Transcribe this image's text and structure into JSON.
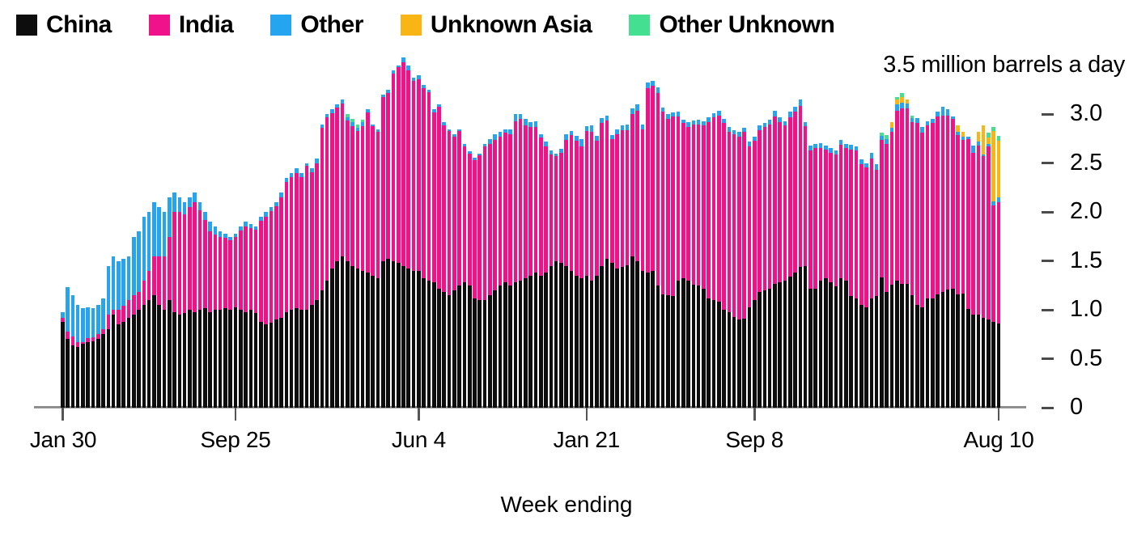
{
  "unit_label": "3.5 million barrels a day",
  "x_axis_title": "Week ending",
  "legend": {
    "items": [
      {
        "label": "China",
        "color": "#0d0d0d"
      },
      {
        "label": "India",
        "color": "#f0128b"
      },
      {
        "label": "Other",
        "color": "#25a5f0"
      },
      {
        "label": "Unknown Asia",
        "color": "#f9b513"
      },
      {
        "label": "Other Unknown",
        "color": "#45df92"
      }
    ]
  },
  "y_axis": {
    "ticks": [
      {
        "label": "3.0",
        "value": 3.0
      },
      {
        "label": "2.5",
        "value": 2.5
      },
      {
        "label": "2.0",
        "value": 2.0
      },
      {
        "label": "1.5",
        "value": 1.5
      },
      {
        "label": "1.0",
        "value": 1.0
      },
      {
        "label": "0.5",
        "value": 0.5
      },
      {
        "label": "0",
        "value": 0
      }
    ]
  },
  "x_axis": {
    "ticks": [
      {
        "label": "Jan 30",
        "week": 0
      },
      {
        "label": "Sep 25",
        "week": 34
      },
      {
        "label": "Jun 4",
        "week": 70
      },
      {
        "label": "Jan 21",
        "week": 103
      },
      {
        "label": "Sep 8",
        "week": 136
      },
      {
        "label": "Aug 10",
        "week": 184
      }
    ]
  },
  "chart_data": {
    "type": "bar",
    "stacked": true,
    "n_weeks": 185,
    "unit": "million barrels a day",
    "ylim": [
      0,
      3.5
    ],
    "xlabel": "Week ending",
    "x_tick_labels": [
      "Jan 30",
      "Sep 25",
      "Jun 4",
      "Jan 21",
      "Sep 8",
      "Aug 10"
    ],
    "series": [
      {
        "name": "China",
        "color": "#0d0d0d",
        "values": [
          0.88,
          0.7,
          0.64,
          0.62,
          0.65,
          0.67,
          0.68,
          0.7,
          0.75,
          0.8,
          0.95,
          0.85,
          0.88,
          0.92,
          0.95,
          1.0,
          1.05,
          1.1,
          1.15,
          1.05,
          1.0,
          1.1,
          0.98,
          0.95,
          0.97,
          1.0,
          0.98,
          1.0,
          1.02,
          0.98,
          1.0,
          1.0,
          1.02,
          1.0,
          1.03,
          1.0,
          0.98,
          1.0,
          0.97,
          0.88,
          0.85,
          0.87,
          0.9,
          0.92,
          0.98,
          1.0,
          1.02,
          1.0,
          1.0,
          1.05,
          1.1,
          1.2,
          1.3,
          1.42,
          1.5,
          1.55,
          1.5,
          1.45,
          1.42,
          1.4,
          1.38,
          1.35,
          1.32,
          1.5,
          1.52,
          1.5,
          1.48,
          1.45,
          1.42,
          1.4,
          1.4,
          1.32,
          1.3,
          1.28,
          1.22,
          1.18,
          1.15,
          1.2,
          1.25,
          1.28,
          1.25,
          1.12,
          1.1,
          1.1,
          1.15,
          1.2,
          1.25,
          1.28,
          1.25,
          1.28,
          1.3,
          1.32,
          1.35,
          1.38,
          1.35,
          1.38,
          1.45,
          1.5,
          1.48,
          1.45,
          1.4,
          1.35,
          1.32,
          1.35,
          1.3,
          1.35,
          1.45,
          1.52,
          1.48,
          1.42,
          1.44,
          1.46,
          1.55,
          1.5,
          1.4,
          1.38,
          1.4,
          1.25,
          1.16,
          1.15,
          1.14,
          1.3,
          1.32,
          1.3,
          1.26,
          1.25,
          1.22,
          1.12,
          1.1,
          1.08,
          1.0,
          0.98,
          0.93,
          0.9,
          0.91,
          1.03,
          1.1,
          1.18,
          1.2,
          1.22,
          1.27,
          1.28,
          1.3,
          1.34,
          1.38,
          1.44,
          1.45,
          1.22,
          1.22,
          1.3,
          1.32,
          1.28,
          1.24,
          1.32,
          1.3,
          1.14,
          1.12,
          1.05,
          1.03,
          1.12,
          1.14,
          1.33,
          1.18,
          1.26,
          1.3,
          1.27,
          1.27,
          1.15,
          1.05,
          1.03,
          1.12,
          1.12,
          1.16,
          1.18,
          1.21,
          1.22,
          1.16,
          1.17,
          1.01,
          0.95,
          0.95,
          0.92,
          0.9,
          0.88,
          0.86
        ]
      },
      {
        "name": "India",
        "color": "#f0128b",
        "values": [
          0.04,
          0.08,
          0.09,
          0.05,
          0.02,
          0.04,
          0.04,
          0.05,
          0.05,
          0.15,
          0.05,
          0.15,
          0.16,
          0.18,
          0.2,
          0.18,
          0.25,
          0.3,
          0.4,
          0.5,
          0.55,
          0.65,
          1.02,
          1.05,
          1.01,
          1.05,
          1.12,
          1.02,
          0.9,
          0.82,
          0.77,
          0.75,
          0.72,
          0.71,
          0.72,
          0.81,
          0.87,
          0.84,
          0.85,
          1.03,
          1.1,
          1.14,
          1.16,
          1.23,
          1.33,
          1.36,
          1.38,
          1.36,
          1.47,
          1.36,
          1.4,
          1.66,
          1.67,
          1.59,
          1.57,
          1.56,
          1.44,
          1.43,
          1.41,
          1.48,
          1.64,
          1.53,
          1.5,
          1.68,
          1.7,
          1.92,
          2.0,
          2.08,
          2.03,
          1.94,
          1.96,
          1.95,
          1.93,
          1.74,
          1.86,
          1.71,
          1.68,
          1.57,
          1.58,
          1.39,
          1.35,
          1.41,
          1.48,
          1.57,
          1.55,
          1.54,
          1.52,
          1.53,
          1.55,
          1.65,
          1.65,
          1.57,
          1.52,
          1.49,
          1.41,
          1.29,
          1.14,
          1.07,
          1.13,
          1.29,
          1.39,
          1.38,
          1.35,
          1.48,
          1.52,
          1.38,
          1.46,
          1.42,
          1.27,
          1.38,
          1.4,
          1.38,
          1.45,
          1.54,
          1.45,
          1.89,
          1.89,
          1.97,
          1.87,
          1.8,
          1.84,
          1.68,
          1.59,
          1.57,
          1.64,
          1.65,
          1.67,
          1.8,
          1.87,
          1.91,
          1.91,
          1.84,
          1.87,
          1.87,
          1.91,
          1.64,
          1.63,
          1.66,
          1.67,
          1.68,
          1.71,
          1.64,
          1.59,
          1.63,
          1.65,
          1.65,
          1.43,
          1.41,
          1.44,
          1.36,
          1.32,
          1.33,
          1.35,
          1.37,
          1.36,
          1.5,
          1.51,
          1.44,
          1.43,
          1.43,
          1.29,
          1.41,
          1.52,
          1.56,
          1.74,
          1.79,
          1.79,
          1.77,
          1.86,
          1.78,
          1.77,
          1.79,
          1.82,
          1.81,
          1.78,
          1.73,
          1.63,
          1.57,
          1.74,
          1.66,
          1.73,
          1.65,
          1.77,
          1.19,
          1.24
        ]
      },
      {
        "name": "Other",
        "color": "#25a5f0",
        "values": [
          0.06,
          0.45,
          0.42,
          0.38,
          0.35,
          0.32,
          0.3,
          0.3,
          0.32,
          0.5,
          0.55,
          0.5,
          0.48,
          0.45,
          0.6,
          0.62,
          0.65,
          0.6,
          0.55,
          0.5,
          0.45,
          0.4,
          0.2,
          0.15,
          0.12,
          0.1,
          0.1,
          0.08,
          0.08,
          0.1,
          0.08,
          0.05,
          0.04,
          0.04,
          0.03,
          0.04,
          0.05,
          0.04,
          0.03,
          0.04,
          0.05,
          0.04,
          0.04,
          0.05,
          0.04,
          0.04,
          0.05,
          0.04,
          0.03,
          0.04,
          0.05,
          0.04,
          0.03,
          0.04,
          0.03,
          0.04,
          0.03,
          0.04,
          0.03,
          0.04,
          0.03,
          0.02,
          0.03,
          0.02,
          0.03,
          0.03,
          0.02,
          0.05,
          0.05,
          0.04,
          0.04,
          0.03,
          0.02,
          0.03,
          0.02,
          0.03,
          0.02,
          0.03,
          0.02,
          0.03,
          0.02,
          0.03,
          0.02,
          0.03,
          0.05,
          0.06,
          0.05,
          0.04,
          0.05,
          0.07,
          0.05,
          0.06,
          0.05,
          0.06,
          0.04,
          0.05,
          0.04,
          0.03,
          0.04,
          0.06,
          0.04,
          0.05,
          0.08,
          0.05,
          0.07,
          0.05,
          0.05,
          0.05,
          0.04,
          0.05,
          0.05,
          0.06,
          0.06,
          0.06,
          0.05,
          0.06,
          0.05,
          0.06,
          0.04,
          0.05,
          0.04,
          0.05,
          0.04,
          0.05,
          0.04,
          0.05,
          0.04,
          0.05,
          0.04,
          0.05,
          0.04,
          0.05,
          0.04,
          0.05,
          0.04,
          0.05,
          0.04,
          0.05,
          0.04,
          0.05,
          0.06,
          0.05,
          0.04,
          0.06,
          0.05,
          0.06,
          0.04,
          0.05,
          0.04,
          0.05,
          0.04,
          0.05,
          0.04,
          0.05,
          0.04,
          0.05,
          0.04,
          0.05,
          0.04,
          0.06,
          0.06,
          0.04,
          0.05,
          0.04,
          0.06,
          0.06,
          0.05,
          0.04,
          0.05,
          0.06,
          0.04,
          0.04,
          0.05,
          0.09,
          0.06,
          0.03,
          0.03,
          0.03,
          0.02,
          0.07,
          0.04,
          0.02,
          0.03,
          0.04,
          0.05
        ]
      },
      {
        "name": "Unknown Asia",
        "color": "#f9b513",
        "values": [
          0,
          0,
          0,
          0,
          0,
          0,
          0,
          0,
          0,
          0,
          0,
          0,
          0,
          0,
          0,
          0,
          0,
          0,
          0,
          0,
          0,
          0,
          0,
          0,
          0,
          0,
          0,
          0,
          0,
          0,
          0,
          0,
          0,
          0,
          0,
          0,
          0,
          0,
          0,
          0,
          0,
          0,
          0,
          0,
          0,
          0,
          0,
          0,
          0,
          0,
          0,
          0,
          0,
          0,
          0,
          0,
          0,
          0,
          0,
          0,
          0,
          0,
          0,
          0,
          0,
          0,
          0,
          0,
          0,
          0,
          0,
          0,
          0,
          0,
          0,
          0,
          0,
          0,
          0,
          0,
          0,
          0,
          0,
          0,
          0,
          0,
          0,
          0,
          0,
          0,
          0,
          0,
          0,
          0,
          0,
          0,
          0,
          0,
          0,
          0,
          0,
          0,
          0,
          0,
          0,
          0,
          0,
          0,
          0,
          0,
          0,
          0,
          0,
          0,
          0,
          0,
          0,
          0,
          0,
          0,
          0,
          0,
          0,
          0,
          0,
          0,
          0,
          0,
          0,
          0,
          0,
          0,
          0,
          0,
          0,
          0,
          0,
          0,
          0,
          0,
          0,
          0,
          0,
          0,
          0,
          0,
          0,
          0,
          0,
          0,
          0,
          0,
          0,
          0,
          0,
          0,
          0,
          0,
          0,
          0,
          0,
          0,
          0,
          0.06,
          0.05,
          0.06,
          0.04,
          0,
          0,
          0,
          0,
          0,
          0,
          0,
          0,
          0,
          0.07,
          0.05,
          0,
          0,
          0.1,
          0.3,
          0.06,
          0.72,
          0.58
        ]
      },
      {
        "name": "Other Unknown",
        "color": "#45df92",
        "values": [
          0,
          0,
          0,
          0,
          0,
          0,
          0,
          0,
          0,
          0,
          0,
          0,
          0,
          0,
          0,
          0,
          0,
          0,
          0,
          0,
          0,
          0,
          0,
          0,
          0,
          0,
          0,
          0,
          0,
          0,
          0,
          0,
          0,
          0,
          0,
          0,
          0,
          0,
          0,
          0,
          0,
          0,
          0,
          0,
          0,
          0,
          0,
          0,
          0,
          0,
          0,
          0,
          0,
          0,
          0,
          0,
          0.03,
          0.03,
          0.04,
          0.03,
          0,
          0,
          0,
          0,
          0,
          0,
          0,
          0,
          0,
          0,
          0,
          0,
          0,
          0,
          0,
          0,
          0,
          0,
          0,
          0,
          0,
          0,
          0,
          0,
          0,
          0,
          0,
          0,
          0,
          0,
          0,
          0,
          0,
          0,
          0,
          0,
          0,
          0,
          0,
          0,
          0,
          0,
          0,
          0,
          0,
          0,
          0,
          0,
          0,
          0,
          0,
          0,
          0,
          0,
          0,
          0,
          0,
          0,
          0,
          0,
          0,
          0,
          0,
          0,
          0,
          0,
          0,
          0,
          0,
          0,
          0,
          0,
          0,
          0,
          0,
          0,
          0,
          0,
          0,
          0,
          0,
          0,
          0,
          0,
          0,
          0,
          0,
          0,
          0,
          0,
          0,
          0,
          0,
          0,
          0,
          0,
          0,
          0,
          0,
          0,
          0,
          0.03,
          0.04,
          0,
          0.03,
          0.04,
          0,
          0.03,
          0,
          0,
          0,
          0,
          0,
          0,
          0,
          0,
          0,
          0,
          0,
          0,
          0,
          0,
          0.05,
          0.04,
          0.05
        ]
      }
    ]
  }
}
